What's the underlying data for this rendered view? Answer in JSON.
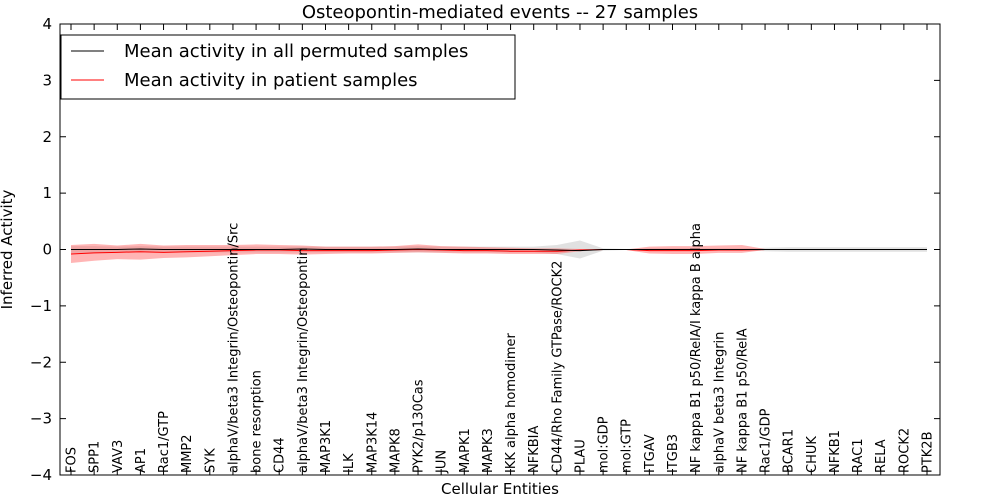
{
  "chart_data": {
    "type": "line",
    "title": "Osteopontin-mediated events -- 27 samples",
    "xlabel": "Cellular Entities",
    "ylabel": "Inferred Activity",
    "ylim": [
      -4,
      4
    ],
    "yticks": [
      -4,
      -3,
      -2,
      -1,
      0,
      1,
      2,
      3,
      4
    ],
    "ytick_labels": [
      "−4",
      "−3",
      "−2",
      "−1",
      "0",
      "1",
      "2",
      "3",
      "4"
    ],
    "grid": false,
    "legend_position": "top-left",
    "categories": [
      "FOS",
      "SPP1",
      "VAV3",
      "AP1",
      "Rac1/GTP",
      "MMP2",
      "SYK",
      "alphaV/beta3 Integrin/Osteopontin/Src",
      "bone resorption",
      "CD44",
      "alphaV/beta3 Integrin/Osteopontin",
      "MAP3K1",
      "ILK",
      "MAP3K14",
      "MAPK8",
      "PYK2/p130Cas",
      "JUN",
      "MAPK1",
      "MAPK3",
      "IKK alpha homodimer",
      "NFKBIA",
      "CD44/Rho Family GTPase/ROCK2",
      "PLAU",
      "mol:GDP",
      "mol:GTP",
      "ITGAV",
      "ITGB3",
      "NF kappa B1 p50/RelA/I kappa B alpha",
      "alphaV beta3 Integrin",
      "NF kappa B1 p50/RelA",
      "Rac1/GDP",
      "BCAR1",
      "CHUK",
      "NFKB1",
      "RAC1",
      "RELA",
      "ROCK2",
      "PTK2B"
    ],
    "series": [
      {
        "name": "Mean activity in all permuted samples",
        "color": "#000000",
        "values": [
          0.0,
          0.0,
          0.0,
          0.01,
          0.0,
          0.0,
          0.0,
          0.0,
          0.0,
          0.0,
          0.01,
          0.0,
          0.0,
          0.0,
          0.0,
          0.01,
          0.0,
          0.0,
          0.0,
          0.0,
          0.0,
          -0.01,
          -0.02,
          0.0,
          0.0,
          0.0,
          0.0,
          0.0,
          0.0,
          0.0,
          0.0,
          0.0,
          0.0,
          0.0,
          0.0,
          0.0,
          0.0,
          0.0
        ],
        "band_low": [
          -0.06,
          -0.06,
          -0.05,
          -0.05,
          -0.05,
          -0.05,
          -0.05,
          -0.05,
          -0.05,
          -0.05,
          -0.05,
          -0.05,
          -0.05,
          -0.05,
          -0.05,
          -0.05,
          -0.05,
          -0.05,
          -0.05,
          -0.05,
          -0.05,
          -0.08,
          -0.16,
          -0.02,
          -0.01,
          -0.02,
          -0.02,
          -0.02,
          -0.02,
          -0.02,
          -0.03,
          -0.04,
          -0.04,
          -0.04,
          -0.04,
          -0.04,
          -0.04,
          -0.04
        ],
        "band_high": [
          0.06,
          0.06,
          0.05,
          0.06,
          0.05,
          0.05,
          0.05,
          0.05,
          0.05,
          0.05,
          0.05,
          0.05,
          0.05,
          0.05,
          0.05,
          0.06,
          0.05,
          0.05,
          0.05,
          0.05,
          0.05,
          0.08,
          0.16,
          0.02,
          0.01,
          0.02,
          0.02,
          0.02,
          0.02,
          0.02,
          0.03,
          0.04,
          0.04,
          0.04,
          0.04,
          0.04,
          0.04,
          0.04
        ]
      },
      {
        "name": "Mean activity in patient samples",
        "color": "#ff0000",
        "values": [
          -0.08,
          -0.06,
          -0.05,
          -0.04,
          -0.05,
          -0.04,
          -0.03,
          -0.02,
          -0.01,
          -0.01,
          -0.02,
          -0.02,
          -0.02,
          -0.02,
          -0.01,
          0.0,
          -0.01,
          -0.02,
          -0.02,
          -0.03,
          -0.03,
          -0.03,
          -0.01,
          0.0,
          0.0,
          -0.02,
          -0.02,
          -0.02,
          -0.01,
          -0.01,
          0.0,
          0.0,
          0.0,
          0.0,
          0.0,
          0.0,
          0.0,
          0.0
        ],
        "band_low": [
          -0.24,
          -0.2,
          -0.17,
          -0.18,
          -0.15,
          -0.14,
          -0.12,
          -0.1,
          -0.08,
          -0.08,
          -0.09,
          -0.08,
          -0.07,
          -0.07,
          -0.06,
          -0.05,
          -0.06,
          -0.07,
          -0.07,
          -0.08,
          -0.08,
          -0.08,
          -0.03,
          -0.01,
          -0.01,
          -0.07,
          -0.08,
          -0.08,
          -0.06,
          -0.06,
          -0.01,
          0.0,
          0.0,
          0.0,
          0.0,
          0.0,
          0.0,
          0.0
        ],
        "band_high": [
          0.08,
          0.1,
          0.07,
          0.1,
          0.07,
          0.08,
          0.08,
          0.08,
          0.09,
          0.08,
          0.07,
          0.05,
          0.05,
          0.05,
          0.06,
          0.09,
          0.06,
          0.05,
          0.04,
          0.03,
          0.02,
          0.02,
          0.01,
          0.0,
          0.0,
          0.05,
          0.06,
          0.06,
          0.07,
          0.08,
          0.01,
          0.0,
          0.0,
          0.0,
          0.0,
          0.0,
          0.0,
          0.0
        ]
      }
    ],
    "band_colors": {
      "permuted": "#c8c8c8",
      "patient": "#ff5a5a"
    }
  }
}
